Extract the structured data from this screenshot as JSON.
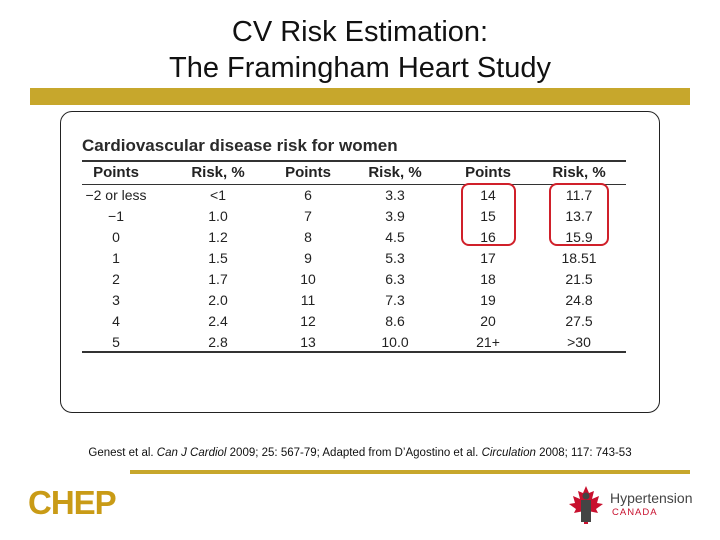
{
  "slide": {
    "title_line1": "CV Risk Estimation:",
    "title_line2": "The Framingham Heart Study"
  },
  "table": {
    "title": "Cardiovascular disease risk for women",
    "headers": [
      "Points",
      "Risk, %",
      "Points",
      "Risk, %",
      "Points",
      "Risk, %"
    ],
    "rows": [
      [
        "−2 or less",
        "<1",
        "6",
        "3.3",
        "14",
        "11.7"
      ],
      [
        "−1",
        "1.0",
        "7",
        "3.9",
        "15",
        "13.7"
      ],
      [
        "0",
        "1.2",
        "8",
        "4.5",
        "16",
        "15.9"
      ],
      [
        "1",
        "1.5",
        "9",
        "5.3",
        "17",
        "18.51"
      ],
      [
        "2",
        "1.7",
        "10",
        "6.3",
        "18",
        "21.5"
      ],
      [
        "3",
        "2.0",
        "11",
        "7.3",
        "19",
        "24.8"
      ],
      [
        "4",
        "2.4",
        "12",
        "8.6",
        "20",
        "27.5"
      ],
      [
        "5",
        "2.8",
        "13",
        "10.0",
        "21+",
        ">30"
      ]
    ],
    "highlight_color": "#d0202a"
  },
  "citation": {
    "part1": "Genest et al. ",
    "journal1": "Can J Cardiol",
    "part2": " 2009; 25: 567-79; Adapted from D’Agostino et al. ",
    "journal2": "Circulation",
    "part3": " 2008; 117: 743-53"
  },
  "footer": {
    "left_logo": "CHEP",
    "right_logo_name": "Hypertension",
    "right_logo_sub": "CANADA"
  },
  "colors": {
    "gold": "#c7a72c",
    "chep_gold": "#c99b16",
    "canada_red": "#c8102e"
  }
}
